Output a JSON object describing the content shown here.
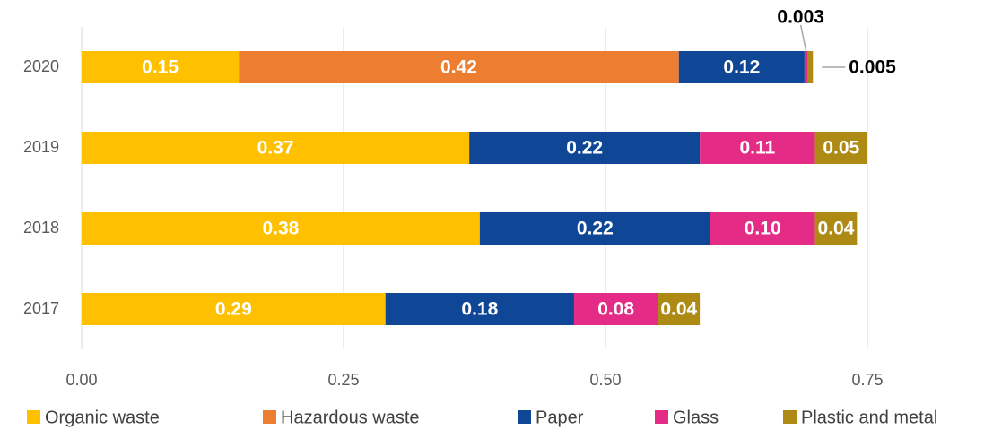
{
  "chart_data": {
    "type": "stacked-barh",
    "categories": [
      "2020",
      "2019",
      "2018",
      "2017"
    ],
    "series": [
      {
        "name": "Organic waste",
        "color": "#FFC000",
        "values": [
          0.15,
          0.37,
          0.38,
          0.29
        ]
      },
      {
        "name": "Hazardous waste",
        "color": "#ED7D31",
        "values": [
          0.42,
          null,
          null,
          null
        ]
      },
      {
        "name": "Paper",
        "color": "#0F4796",
        "values": [
          0.12,
          0.22,
          0.22,
          0.18
        ]
      },
      {
        "name": "Glass",
        "color": "#E42B85",
        "values": [
          0.003,
          0.11,
          0.1,
          0.08
        ],
        "value_labels": [
          "0.003",
          "0.11",
          "0.10",
          "0.08"
        ]
      },
      {
        "name": "Plastic and metal",
        "color": "#AC8A14",
        "values": [
          0.005,
          0.05,
          0.04,
          0.04
        ],
        "value_labels": [
          "0.005",
          "0.05",
          "0.04",
          "0.04"
        ]
      }
    ],
    "xlim": [
      0,
      0.75
    ],
    "xticks": [
      {
        "value": 0,
        "label": "0.00"
      },
      {
        "value": 0.25,
        "label": "0.25"
      },
      {
        "value": 0.5,
        "label": "0.50"
      },
      {
        "value": 0.75,
        "label": "0.75"
      }
    ],
    "grid": true,
    "legend": "bottom"
  }
}
